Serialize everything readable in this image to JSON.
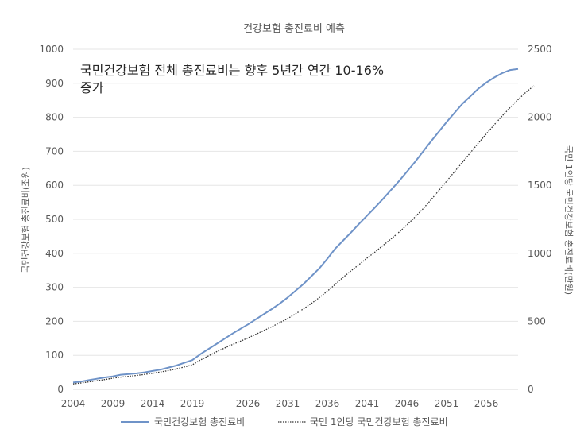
{
  "chart_data": {
    "type": "line",
    "title": "건강보험 총진료비 예측",
    "annotation": [
      "국민건강보험 전체 총진료비는 향후 5년간 연간 10-16%",
      "증가"
    ],
    "ylabel_left": "국민건강보험 총진료비(조원)",
    "ylabel_right": "국민 1인당 국민건강보험 총진료비(만원)",
    "ylim_left": [
      0,
      1000
    ],
    "ylim_right": [
      0,
      2500
    ],
    "yticks_left": [
      "0",
      "100",
      "200",
      "300",
      "400",
      "500",
      "600",
      "700",
      "800",
      "900",
      "1000"
    ],
    "yticks_right": [
      "0",
      "500",
      "1000",
      "1500",
      "2000",
      "2500"
    ],
    "xlim": [
      2004,
      2060
    ],
    "xticks": [
      "2004",
      "2009",
      "2014",
      "2019",
      "2026",
      "2031",
      "2036",
      "2041",
      "2046",
      "2051",
      "2056"
    ],
    "grid": true,
    "legend_position": "bottom",
    "series": [
      {
        "name": "국민건강보험 총진료비",
        "axis": "left",
        "color": "#6f93c8",
        "style": "solid",
        "points": [
          [
            2004,
            20
          ],
          [
            2005,
            23
          ],
          [
            2006,
            27
          ],
          [
            2007,
            31
          ],
          [
            2008,
            35
          ],
          [
            2009,
            38
          ],
          [
            2010,
            43
          ],
          [
            2011,
            45
          ],
          [
            2012,
            47
          ],
          [
            2013,
            50
          ],
          [
            2014,
            54
          ],
          [
            2015,
            58
          ],
          [
            2016,
            64
          ],
          [
            2017,
            70
          ],
          [
            2018,
            78
          ],
          [
            2019,
            86
          ],
          [
            2020,
            103
          ],
          [
            2021,
            118
          ],
          [
            2022,
            133
          ],
          [
            2023,
            148
          ],
          [
            2024,
            163
          ],
          [
            2025,
            177
          ],
          [
            2026,
            191
          ],
          [
            2027,
            206
          ],
          [
            2028,
            221
          ],
          [
            2029,
            236
          ],
          [
            2030,
            252
          ],
          [
            2031,
            270
          ],
          [
            2032,
            290
          ],
          [
            2033,
            310
          ],
          [
            2034,
            333
          ],
          [
            2035,
            356
          ],
          [
            2036,
            384
          ],
          [
            2037,
            414
          ],
          [
            2038,
            438
          ],
          [
            2039,
            462
          ],
          [
            2040,
            487
          ],
          [
            2041,
            511
          ],
          [
            2042,
            535
          ],
          [
            2043,
            560
          ],
          [
            2044,
            586
          ],
          [
            2045,
            612
          ],
          [
            2046,
            640
          ],
          [
            2047,
            668
          ],
          [
            2048,
            698
          ],
          [
            2049,
            728
          ],
          [
            2050,
            757
          ],
          [
            2051,
            786
          ],
          [
            2052,
            813
          ],
          [
            2053,
            840
          ],
          [
            2054,
            862
          ],
          [
            2055,
            884
          ],
          [
            2056,
            902
          ],
          [
            2057,
            917
          ],
          [
            2058,
            930
          ],
          [
            2059,
            939
          ],
          [
            2060,
            942
          ]
        ]
      },
      {
        "name": "국민 1인당 국민건강보험 총진료비",
        "axis": "right",
        "color": "#333333",
        "style": "dotted",
        "points": [
          [
            2004,
            40
          ],
          [
            2005,
            47
          ],
          [
            2006,
            55
          ],
          [
            2007,
            63
          ],
          [
            2008,
            72
          ],
          [
            2009,
            82
          ],
          [
            2010,
            90
          ],
          [
            2011,
            96
          ],
          [
            2012,
            102
          ],
          [
            2013,
            110
          ],
          [
            2014,
            118
          ],
          [
            2015,
            128
          ],
          [
            2016,
            138
          ],
          [
            2017,
            150
          ],
          [
            2018,
            165
          ],
          [
            2019,
            180
          ],
          [
            2020,
            215
          ],
          [
            2021,
            245
          ],
          [
            2022,
            275
          ],
          [
            2023,
            302
          ],
          [
            2024,
            328
          ],
          [
            2025,
            352
          ],
          [
            2026,
            378
          ],
          [
            2027,
            405
          ],
          [
            2028,
            432
          ],
          [
            2029,
            460
          ],
          [
            2030,
            490
          ],
          [
            2031,
            520
          ],
          [
            2032,
            555
          ],
          [
            2033,
            592
          ],
          [
            2034,
            632
          ],
          [
            2035,
            675
          ],
          [
            2036,
            722
          ],
          [
            2037,
            772
          ],
          [
            2038,
            825
          ],
          [
            2039,
            872
          ],
          [
            2040,
            918
          ],
          [
            2041,
            965
          ],
          [
            2042,
            1010
          ],
          [
            2043,
            1058
          ],
          [
            2044,
            1105
          ],
          [
            2045,
            1155
          ],
          [
            2046,
            1208
          ],
          [
            2047,
            1265
          ],
          [
            2048,
            1325
          ],
          [
            2049,
            1390
          ],
          [
            2050,
            1460
          ],
          [
            2051,
            1530
          ],
          [
            2052,
            1600
          ],
          [
            2053,
            1670
          ],
          [
            2054,
            1740
          ],
          [
            2055,
            1810
          ],
          [
            2056,
            1878
          ],
          [
            2057,
            1945
          ],
          [
            2058,
            2010
          ],
          [
            2059,
            2072
          ],
          [
            2060,
            2130
          ],
          [
            2061,
            2185
          ],
          [
            2062,
            2232
          ]
        ]
      }
    ]
  }
}
